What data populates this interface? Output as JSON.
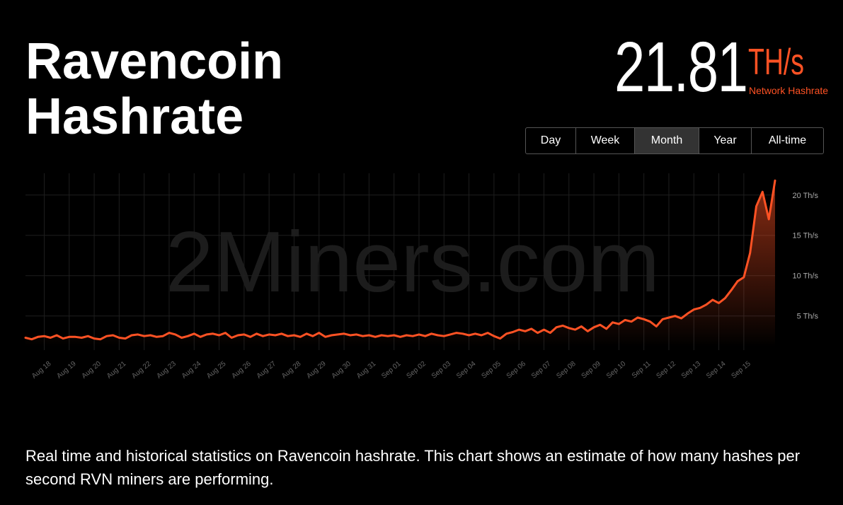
{
  "header": {
    "title": "Ravencoin Hashrate",
    "hashrate": "21.81",
    "unit": "TH/s",
    "hashrate_label": "Network Hashrate"
  },
  "periods": [
    "Day",
    "Week",
    "Month",
    "Year",
    "All-time"
  ],
  "selected_period": "Month",
  "watermark": "2Miners.com",
  "description": "Real time and historical statistics on Ravencoin hashrate. This chart shows an estimate of how many hashes per second RVN miners are performing.",
  "chart_data": {
    "type": "line",
    "color": "#ff5224",
    "grid": true,
    "ylim": [
      1.2,
      22.7
    ],
    "yticks": [
      {
        "value": 5,
        "label": "5 Th/s"
      },
      {
        "value": 10,
        "label": "10 Th/s"
      },
      {
        "value": 15,
        "label": "15 Th/s"
      },
      {
        "value": 20,
        "label": "20 Th/s"
      }
    ],
    "categories": [
      null,
      null,
      null,
      "Aug 18",
      null,
      null,
      null,
      "Aug 19",
      null,
      null,
      null,
      "Aug 20",
      null,
      null,
      null,
      "Aug 21",
      null,
      null,
      null,
      "Aug 22",
      null,
      null,
      null,
      "Aug 23",
      null,
      null,
      null,
      "Aug 24",
      null,
      null,
      null,
      "Aug 25",
      null,
      null,
      null,
      "Aug 26",
      null,
      null,
      null,
      "Aug 27",
      null,
      null,
      null,
      "Aug 28",
      null,
      null,
      null,
      "Aug 29",
      null,
      null,
      null,
      "Aug 30",
      null,
      null,
      null,
      "Aug 31",
      null,
      null,
      null,
      "Sep 01",
      null,
      null,
      null,
      "Sep 02",
      null,
      null,
      null,
      "Sep 03",
      null,
      null,
      null,
      "Sep 04",
      null,
      null,
      null,
      "Sep 05",
      null,
      null,
      null,
      "Sep 06",
      null,
      null,
      null,
      "Sep 07",
      null,
      null,
      null,
      "Sep 08",
      null,
      null,
      null,
      "Sep 09",
      null,
      null,
      null,
      "Sep 10",
      null,
      null,
      null,
      "Sep 11",
      null,
      null,
      null,
      "Sep 12",
      null,
      null,
      null,
      "Sep 13",
      null,
      null,
      null,
      "Sep 14",
      null,
      null,
      null,
      "Sep 15",
      null,
      null,
      null,
      null,
      null
    ],
    "values": [
      2.3,
      2.1,
      2.4,
      2.5,
      2.3,
      2.6,
      2.2,
      2.4,
      2.4,
      2.3,
      2.5,
      2.2,
      2.1,
      2.5,
      2.6,
      2.3,
      2.2,
      2.6,
      2.7,
      2.5,
      2.6,
      2.4,
      2.5,
      2.9,
      2.7,
      2.3,
      2.5,
      2.8,
      2.4,
      2.7,
      2.8,
      2.6,
      2.9,
      2.3,
      2.6,
      2.7,
      2.4,
      2.8,
      2.5,
      2.7,
      2.6,
      2.8,
      2.5,
      2.6,
      2.4,
      2.8,
      2.5,
      2.9,
      2.4,
      2.6,
      2.7,
      2.8,
      2.6,
      2.7,
      2.5,
      2.6,
      2.4,
      2.6,
      2.5,
      2.6,
      2.4,
      2.6,
      2.5,
      2.7,
      2.5,
      2.8,
      2.6,
      2.5,
      2.7,
      2.9,
      2.8,
      2.6,
      2.8,
      2.6,
      2.9,
      2.5,
      2.2,
      2.8,
      3.0,
      3.3,
      3.1,
      3.4,
      2.9,
      3.3,
      2.9,
      3.6,
      3.8,
      3.5,
      3.3,
      3.7,
      3.1,
      3.6,
      3.9,
      3.4,
      4.2,
      4.0,
      4.5,
      4.3,
      4.8,
      4.6,
      4.3,
      3.7,
      4.6,
      4.8,
      5.0,
      4.7,
      5.3,
      5.8,
      6.0,
      6.4,
      7.0,
      6.6,
      7.2,
      8.2,
      9.3,
      9.8,
      12.8,
      18.6,
      20.4,
      17.0,
      21.8
    ]
  }
}
